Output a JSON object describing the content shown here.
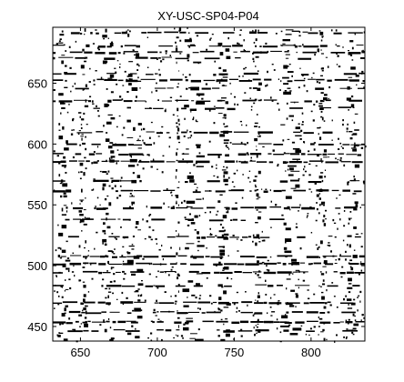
{
  "chart_data": {
    "type": "heatmap",
    "title": "XY-USC-SP04-P04",
    "xlabel": "",
    "ylabel": "",
    "xlim": [
      632,
      835
    ],
    "ylim": [
      438,
      696
    ],
    "xticks": [
      650,
      700,
      750,
      800
    ],
    "yticks": [
      450,
      500,
      550,
      600,
      650
    ],
    "colormap": [
      "#ffffff",
      "#000000"
    ],
    "grid": false,
    "rows": [
      {
        "y": 692,
        "density": 0.7
      },
      {
        "y": 681,
        "density": 0.5
      },
      {
        "y": 676,
        "density": 0.8
      },
      {
        "y": 671,
        "density": 0.6
      },
      {
        "y": 658,
        "density": 0.4
      },
      {
        "y": 653,
        "density": 0.7
      },
      {
        "y": 646,
        "density": 0.5
      },
      {
        "y": 636,
        "density": 0.8
      },
      {
        "y": 630,
        "density": 0.4
      },
      {
        "y": 610,
        "density": 0.5
      },
      {
        "y": 600,
        "density": 0.6
      },
      {
        "y": 592,
        "density": 0.8
      },
      {
        "y": 586,
        "density": 0.9
      },
      {
        "y": 570,
        "density": 0.5
      },
      {
        "y": 562,
        "density": 0.6
      },
      {
        "y": 548,
        "density": 0.6
      },
      {
        "y": 538,
        "density": 0.5
      },
      {
        "y": 524,
        "density": 0.5
      },
      {
        "y": 508,
        "density": 0.8
      },
      {
        "y": 502,
        "density": 0.9
      },
      {
        "y": 495,
        "density": 0.7
      },
      {
        "y": 484,
        "density": 0.5
      },
      {
        "y": 470,
        "density": 0.8
      },
      {
        "y": 462,
        "density": 0.7
      },
      {
        "y": 454,
        "density": 0.9
      },
      {
        "y": 447,
        "density": 0.6
      }
    ],
    "columns": [
      {
        "x": 638,
        "width": 6
      },
      {
        "x": 651,
        "width": 5
      },
      {
        "x": 667,
        "width": 6
      },
      {
        "x": 684,
        "width": 8
      },
      {
        "x": 713,
        "width": 3
      },
      {
        "x": 721,
        "width": 10
      },
      {
        "x": 742,
        "width": 6
      },
      {
        "x": 764,
        "width": 4
      },
      {
        "x": 785,
        "width": 10
      },
      {
        "x": 806,
        "width": 5
      },
      {
        "x": 826,
        "width": 6
      }
    ]
  }
}
